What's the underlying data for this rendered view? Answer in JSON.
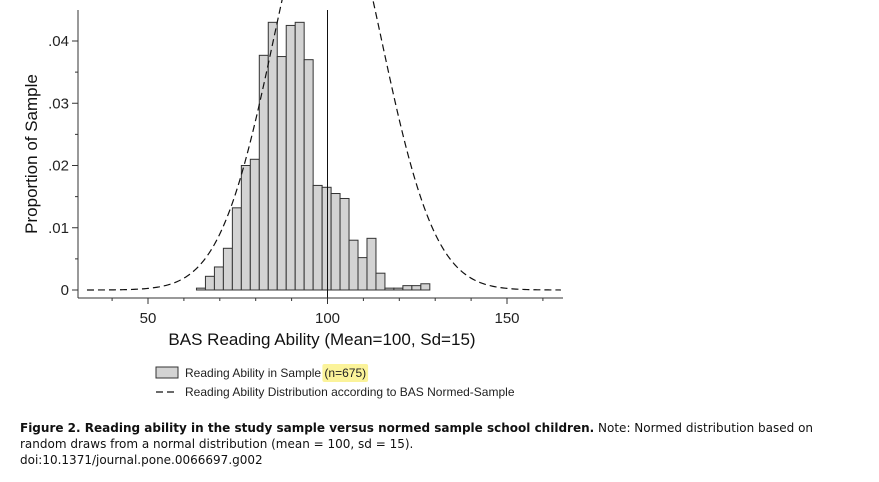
{
  "chart_data": {
    "type": "bar",
    "xlabel": "BAS Reading Ability (Mean=100, Sd=15)",
    "ylabel": "Proportion of Sample",
    "xlim": [
      33,
      165
    ],
    "ylim": [
      0,
      0.045
    ],
    "xticks": [
      50,
      100,
      150
    ],
    "xtick_labels": [
      "50",
      "100",
      "150"
    ],
    "yticks": [
      0,
      0.01,
      0.02,
      0.03,
      0.04
    ],
    "ytick_labels": [
      "0",
      ".01",
      ".02",
      ".03",
      ".04"
    ],
    "reference_line_x": 100,
    "grid": false,
    "legend_position": "bottom",
    "histogram": {
      "name": "Reading Ability in Sample (n=675)",
      "bin_width": 2.5,
      "bin_starts": [
        63.5,
        66,
        68.5,
        71,
        73.5,
        76,
        78.5,
        81,
        83.5,
        86,
        88.5,
        91,
        93.5,
        96,
        98.5,
        101,
        103.5,
        106,
        108.5,
        111,
        113.5,
        116,
        118.5,
        121,
        123.5,
        126
      ],
      "values": [
        0.0003,
        0.0022,
        0.0037,
        0.0067,
        0.0132,
        0.02,
        0.021,
        0.0377,
        0.043,
        0.0375,
        0.0425,
        0.043,
        0.037,
        0.0168,
        0.0165,
        0.0155,
        0.0147,
        0.008,
        0.0052,
        0.0083,
        0.0027,
        0.0003,
        0.0003,
        0.0007,
        0.0007,
        0.001
      ]
    },
    "normal_curve": {
      "name": "Reading Ability Distribution according to BAS Normed-Sample",
      "mean": 100,
      "sd": 15,
      "x_range": [
        33,
        165
      ]
    }
  },
  "legend": {
    "histogram_label_prefix": "Reading Ability in Sample ",
    "histogram_label_highlight": "(n=675)",
    "curve_label": "Reading Ability Distribution according to BAS Normed-Sample"
  },
  "caption": {
    "title": "Figure 2. Reading ability in the study sample versus normed sample school children.",
    "note": "Note: Normed distribution based on random draws from a normal distribution (mean = 100, sd = 15).",
    "doi": "doi:10.1371/journal.pone.0066697.g002"
  },
  "colors": {
    "bar_fill": "#d3d3d3",
    "bar_stroke": "#333333",
    "axis": "#333333",
    "highlight": "#fbf39a"
  }
}
